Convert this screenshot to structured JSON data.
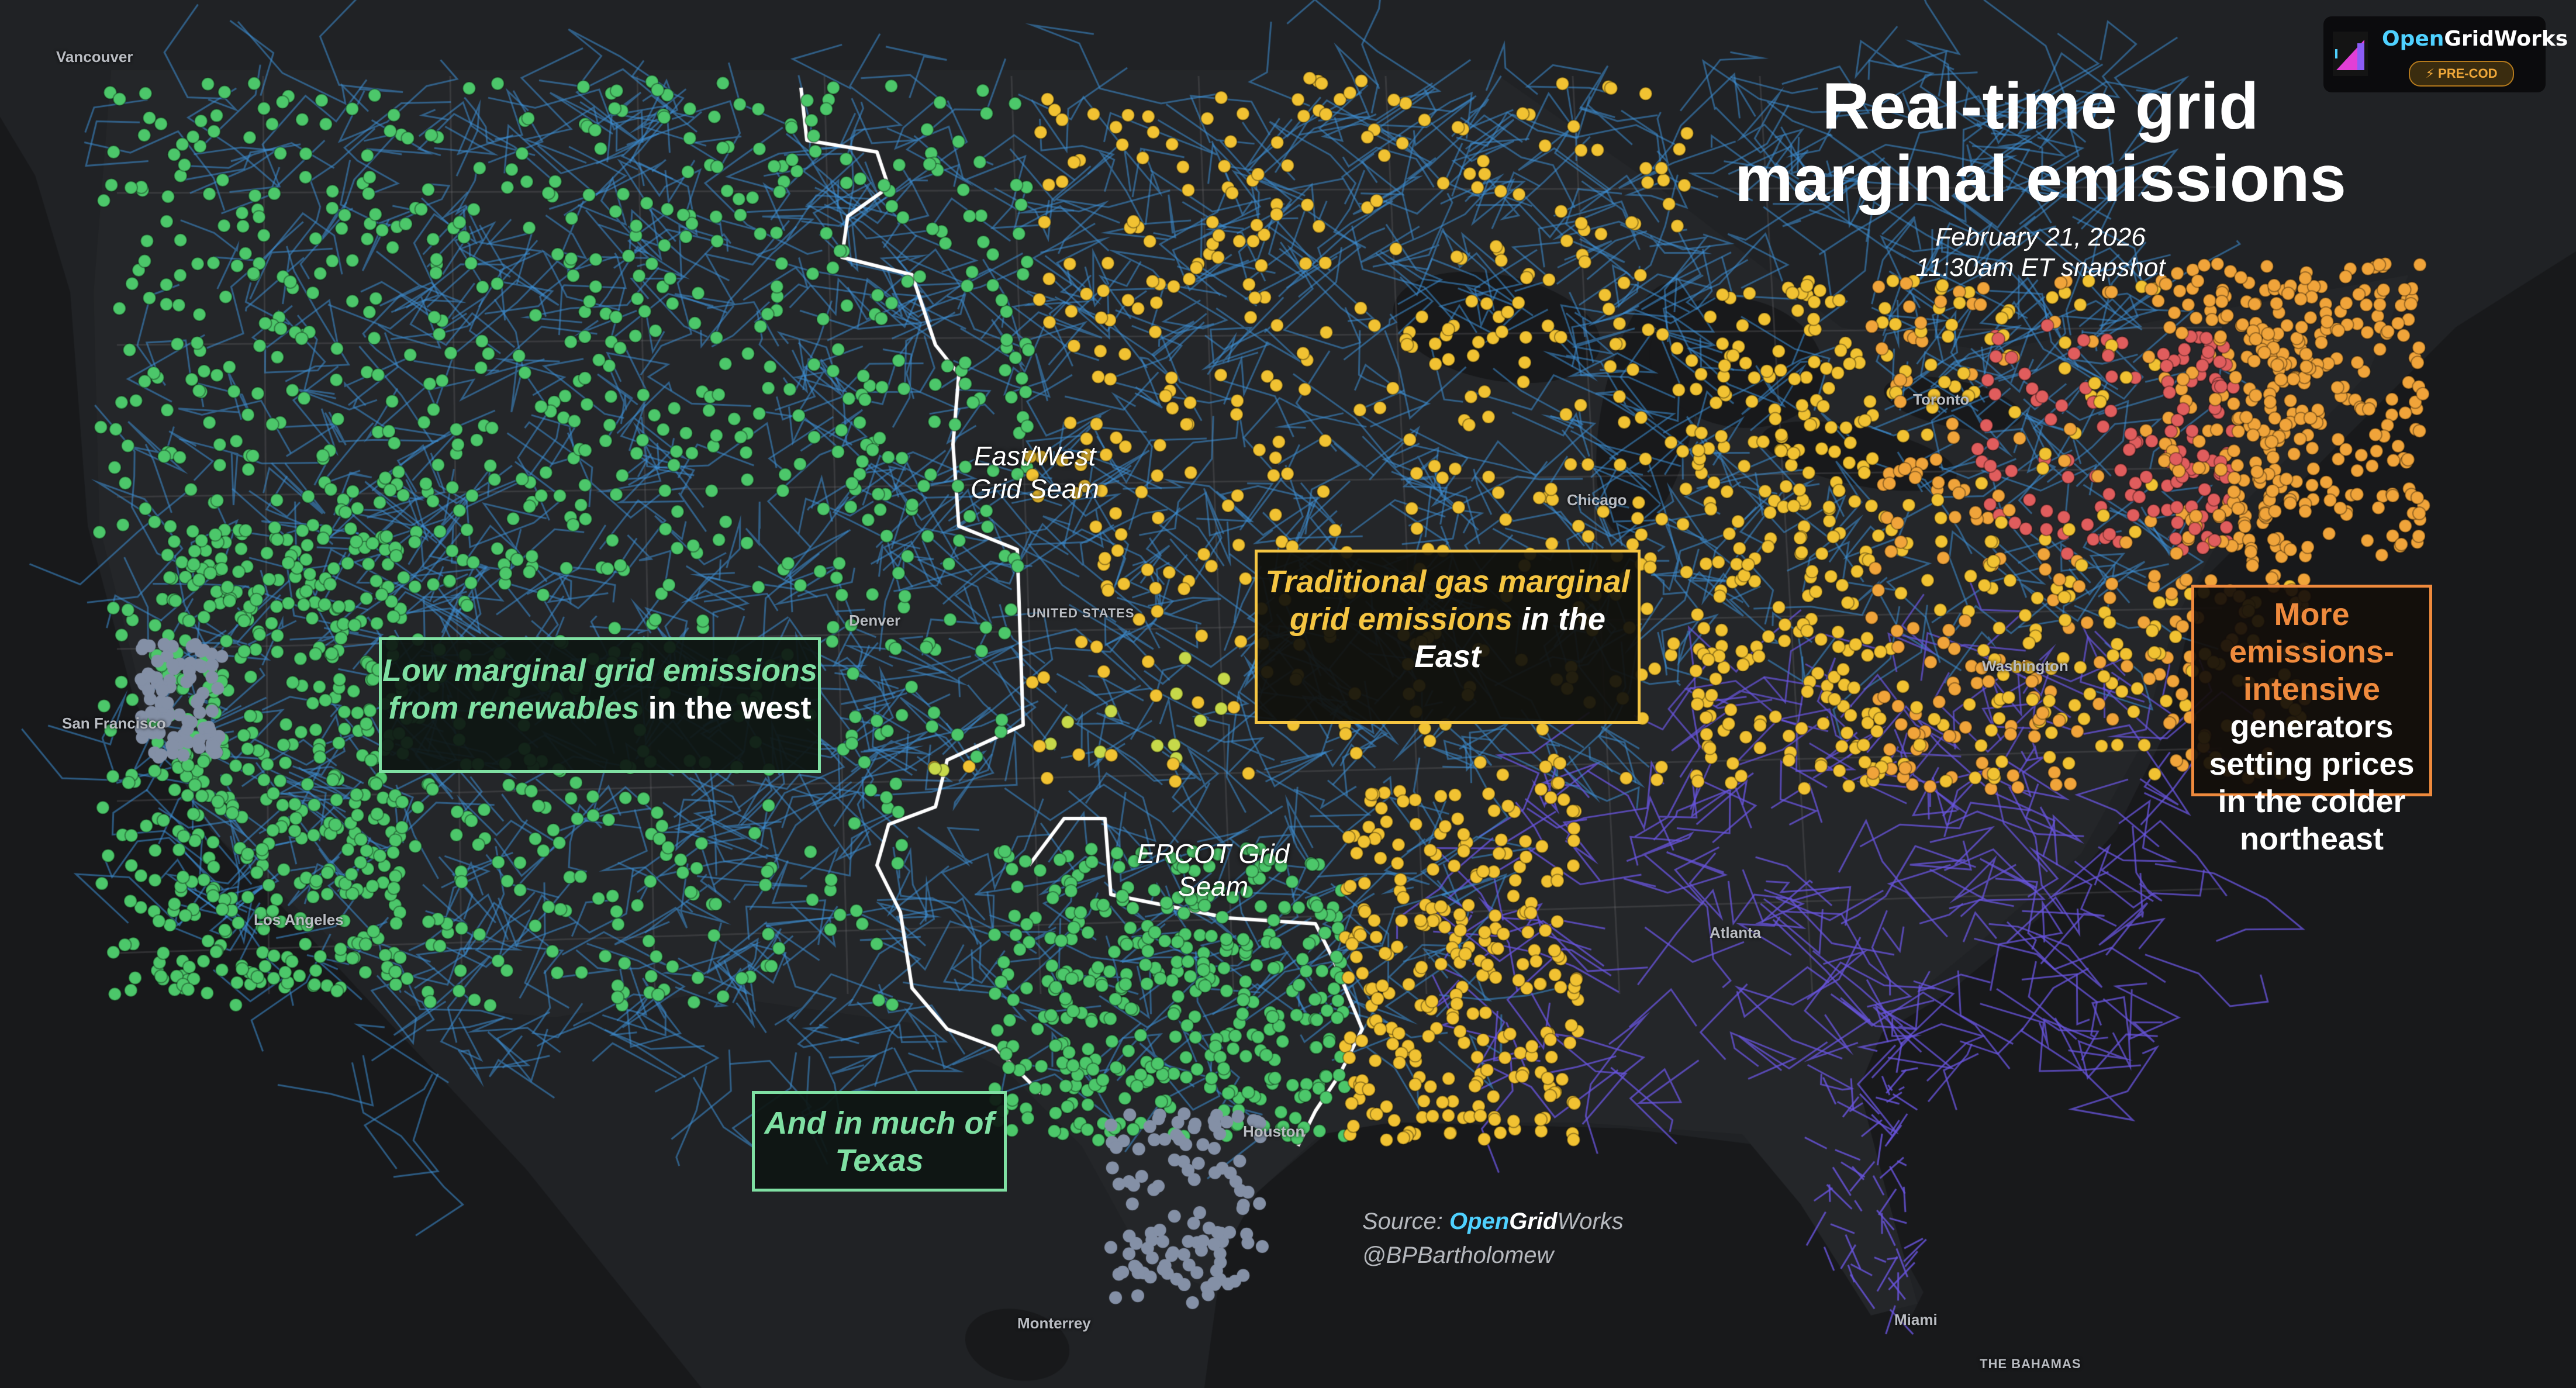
{
  "title": {
    "line1": "Real-time grid",
    "line2": "marginal emissions"
  },
  "subtitle": {
    "date": "February 21, 2026",
    "time": "11:30am ET snapshot"
  },
  "logo": {
    "brand_open": "Open",
    "brand_rest": "GridWorks",
    "badge": "⚡ PRE-COD"
  },
  "annotations": {
    "west": {
      "hl": "Low marginal grid emissions from renewables",
      "tail": "in the west"
    },
    "texas": {
      "hl": "And in much of Texas"
    },
    "east": {
      "hl": "Traditional gas marginal grid emissions",
      "tail": "in the East"
    },
    "northeast": {
      "hl": "More emissions-intensive",
      "tail": "generators setting prices in the colder northeast"
    }
  },
  "seams": {
    "east_west": {
      "line1": "East/West",
      "line2": "Grid Seam"
    },
    "ercot": {
      "line1": "ERCOT Grid",
      "line2": "Seam"
    }
  },
  "cities": [
    "Vancouver",
    "San Francisco",
    "Los Angeles",
    "Denver",
    "UNITED STATES",
    "Toronto",
    "Chicago",
    "Washington",
    "Atlanta",
    "Houston",
    "Monterrey",
    "Miami",
    "THE BAHAMAS"
  ],
  "source": {
    "prefix": "Source: ",
    "open": "Open",
    "grid": "Grid",
    "works": "Works",
    "handle": "@BPBartholomew"
  },
  "colors": {
    "background": "#191a1c",
    "land": "#242629",
    "water": "#18191b",
    "low_emissions": "#4cc76a",
    "gas_marginal": "#f1c232",
    "transition": "#c6d94a",
    "orange_marginal": "#f0a43a",
    "high_emissions": "#e05d5d",
    "offline": "#8490a6",
    "seam_line": "#ffffff",
    "transmission_low": "#3e8fd6",
    "transmission_high": "#6a55e0"
  },
  "legend_regions": [
    {
      "name": "West",
      "emission_level": "low",
      "color_key": "low_emissions"
    },
    {
      "name": "Texas",
      "emission_level": "low",
      "color_key": "low_emissions"
    },
    {
      "name": "East",
      "emission_level": "gas",
      "color_key": "gas_marginal"
    },
    {
      "name": "Northeast",
      "emission_level": "high",
      "color_key": "high_emissions"
    }
  ]
}
